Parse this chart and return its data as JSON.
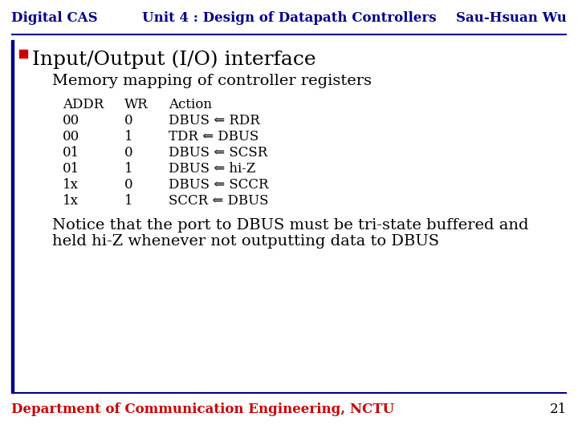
{
  "header_left": "Digital CAS",
  "header_center": "Unit 4 : Design of Datapath Controllers",
  "header_right": "Sau-Hsuan Wu",
  "header_color": "#00008B",
  "header_fontsize": 12,
  "bullet1": "Input/Output (I/O) interface",
  "bullet1_fontsize": 18,
  "bullet2a": "Memory mapping of controller registers",
  "bullet2_fontsize": 14,
  "table_header": [
    "ADDR",
    "WR",
    "Action"
  ],
  "table_rows": [
    [
      "00",
      "0",
      "DBUS ⇐ RDR"
    ],
    [
      "00",
      "1",
      "TDR ⇐ DBUS"
    ],
    [
      "01",
      "0",
      "DBUS ⇐ SCSR"
    ],
    [
      "01",
      "1",
      "DBUS ⇐ hi-Z"
    ],
    [
      "1x",
      "0",
      "DBUS ⇐ SCCR"
    ],
    [
      "1x",
      "1",
      "SCCR ⇐ DBUS"
    ]
  ],
  "table_fontsize": 12,
  "bullet2b_line1": "Notice that the port to DBUS must be tri-state buffered and",
  "bullet2b_line2": "held hi-Z whenever not outputting data to DBUS",
  "footer_text": "Department of Communication Engineering, NCTU",
  "footer_color": "#CC0000",
  "footer_fontsize": 12,
  "page_number": "21",
  "bg_color": "#FFFFFF",
  "header_bar_color": "#00008B",
  "left_bar_color": "#00008B",
  "red_square_color": "#CC0000",
  "gray_square_color": "#888888"
}
